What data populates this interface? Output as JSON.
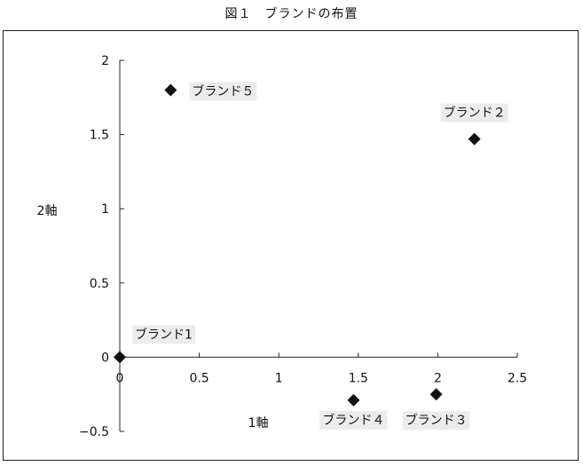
{
  "chart_data": {
    "type": "scatter",
    "title": "図１　ブランドの布置",
    "xlabel": "1軸",
    "ylabel": "2軸",
    "xlim": [
      0,
      2.5
    ],
    "ylim": [
      -0.5,
      2
    ],
    "xticks": [
      "0",
      "0.5",
      "1",
      "1.5",
      "2",
      "2.5"
    ],
    "yticks": [
      "−0.5",
      "0",
      "0.5",
      "1",
      "1.5",
      "2"
    ],
    "grid": false,
    "marker_color": "#111111",
    "label_bg": "#ececec",
    "points": [
      {
        "label": "ブランド1",
        "x": 0.0,
        "y": 0.0
      },
      {
        "label": "ブランド２",
        "x": 2.23,
        "y": 1.47
      },
      {
        "label": "ブランド３",
        "x": 1.99,
        "y": -0.25
      },
      {
        "label": "ブランド４",
        "x": 1.47,
        "y": -0.29
      },
      {
        "label": "ブランド５",
        "x": 0.32,
        "y": 1.8
      }
    ]
  }
}
